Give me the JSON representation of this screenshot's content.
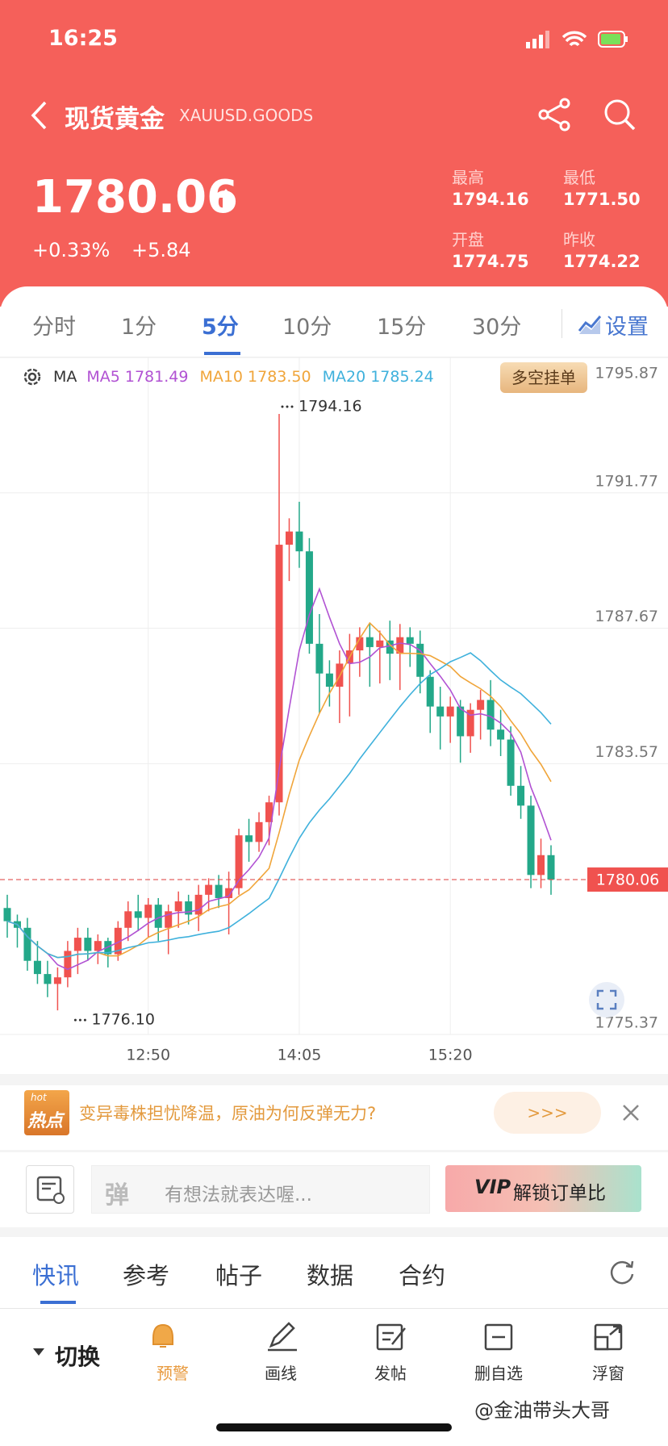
{
  "status_bar": {
    "time": "16:25"
  },
  "header": {
    "title": "现货黄金",
    "symbol": "XAUUSD.GOODS",
    "price": "1780.06",
    "change_pct": "+0.33%",
    "change": "+5.84",
    "stats": [
      {
        "label": "最高",
        "value": "1794.16"
      },
      {
        "label": "最低",
        "value": "1771.50"
      },
      {
        "label": "开盘",
        "value": "1774.75"
      },
      {
        "label": "昨收",
        "value": "1774.22"
      }
    ]
  },
  "period_tabs": {
    "items": [
      "分时",
      "1分",
      "5分",
      "10分",
      "15分",
      "30分"
    ],
    "active": 2,
    "settings": "设置"
  },
  "chart_data": {
    "type": "candlestick",
    "indicator": "MA",
    "button": "多空挂单",
    "ma": [
      {
        "name": "MA5",
        "value": 1781.49,
        "value_label": "1781.49",
        "color": "#b152d3"
      },
      {
        "name": "MA10",
        "value": 1783.5,
        "value_label": "1783.50",
        "color": "#f0a53a"
      },
      {
        "name": "MA20",
        "value": 1785.24,
        "value_label": "1785.24",
        "color": "#3fb1dc"
      }
    ],
    "up_color": "#f0524f",
    "down_color": "#23a889",
    "ylim": [
      1775.37,
      1795.87
    ],
    "yticks": [
      1775.37,
      1783.57,
      1787.67,
      1791.77,
      1795.87
    ],
    "last_price": 1780.06,
    "high_marker": 1794.16,
    "low_marker": {
      "value": 1776.1,
      "label": "1776.10"
    },
    "categories": [
      null,
      null,
      null,
      null,
      null,
      null,
      null,
      null,
      null,
      null,
      null,
      null,
      null,
      null,
      "12:50",
      null,
      null,
      null,
      null,
      null,
      null,
      null,
      null,
      null,
      null,
      null,
      null,
      null,
      null,
      "14:05",
      null,
      null,
      null,
      null,
      null,
      null,
      null,
      null,
      null,
      null,
      null,
      null,
      null,
      null,
      "15:20",
      null,
      null,
      null,
      null,
      null,
      null,
      null,
      null,
      null,
      null
    ],
    "ohlc": [
      [
        1779.2,
        1779.6,
        1778.3,
        1778.8
      ],
      [
        1778.8,
        1779.0,
        1778.0,
        1778.6
      ],
      [
        1778.6,
        1778.9,
        1777.3,
        1777.6
      ],
      [
        1777.6,
        1778.2,
        1776.9,
        1777.2
      ],
      [
        1777.2,
        1777.6,
        1776.5,
        1776.9
      ],
      [
        1776.9,
        1777.4,
        1776.1,
        1777.1
      ],
      [
        1777.1,
        1778.2,
        1776.8,
        1777.9
      ],
      [
        1777.9,
        1778.6,
        1777.2,
        1778.3
      ],
      [
        1778.3,
        1778.6,
        1777.6,
        1777.9
      ],
      [
        1777.9,
        1778.4,
        1777.5,
        1778.2
      ],
      [
        1778.2,
        1778.3,
        1777.4,
        1777.8
      ],
      [
        1777.8,
        1778.8,
        1777.6,
        1778.6
      ],
      [
        1778.6,
        1779.4,
        1778.2,
        1779.1
      ],
      [
        1779.1,
        1779.6,
        1778.5,
        1778.9
      ],
      [
        1778.9,
        1779.5,
        1778.3,
        1779.3
      ],
      [
        1779.3,
        1779.5,
        1778.2,
        1778.6
      ],
      [
        1778.6,
        1779.3,
        1777.8,
        1779.1
      ],
      [
        1779.1,
        1779.7,
        1778.6,
        1779.4
      ],
      [
        1779.4,
        1779.6,
        1778.7,
        1779.0
      ],
      [
        1779.0,
        1779.9,
        1778.5,
        1779.6
      ],
      [
        1779.6,
        1780.1,
        1779.1,
        1779.9
      ],
      [
        1779.9,
        1780.2,
        1779.2,
        1779.5
      ],
      [
        1779.5,
        1780.3,
        1778.4,
        1779.8
      ],
      [
        1779.8,
        1781.6,
        1779.6,
        1781.4
      ],
      [
        1781.4,
        1781.9,
        1780.6,
        1781.2
      ],
      [
        1781.2,
        1782.1,
        1780.9,
        1781.8
      ],
      [
        1781.8,
        1782.6,
        1781.1,
        1782.4
      ],
      [
        1782.4,
        1794.16,
        1782.0,
        1790.2
      ],
      [
        1790.2,
        1791.0,
        1789.1,
        1790.6
      ],
      [
        1790.6,
        1791.5,
        1789.5,
        1790.0
      ],
      [
        1790.0,
        1790.4,
        1786.9,
        1787.2
      ],
      [
        1787.2,
        1788.1,
        1785.1,
        1786.3
      ],
      [
        1786.3,
        1786.7,
        1785.3,
        1785.9
      ],
      [
        1785.9,
        1787.0,
        1784.8,
        1786.6
      ],
      [
        1786.6,
        1787.5,
        1785.0,
        1787.0
      ],
      [
        1787.0,
        1787.7,
        1786.2,
        1787.4
      ],
      [
        1787.4,
        1787.8,
        1785.9,
        1787.1
      ],
      [
        1787.1,
        1787.6,
        1786.0,
        1787.3
      ],
      [
        1787.3,
        1787.9,
        1786.1,
        1786.9
      ],
      [
        1786.9,
        1787.8,
        1785.8,
        1787.4
      ],
      [
        1787.4,
        1787.7,
        1786.5,
        1787.2
      ],
      [
        1787.2,
        1787.6,
        1785.7,
        1786.2
      ],
      [
        1786.2,
        1786.4,
        1784.5,
        1785.3
      ],
      [
        1785.3,
        1785.9,
        1784.0,
        1785.0
      ],
      [
        1785.0,
        1785.6,
        1784.2,
        1785.3
      ],
      [
        1785.3,
        1785.5,
        1783.6,
        1784.4
      ],
      [
        1784.4,
        1785.4,
        1783.9,
        1785.2
      ],
      [
        1785.2,
        1785.8,
        1784.3,
        1785.5
      ],
      [
        1785.5,
        1786.1,
        1784.1,
        1784.6
      ],
      [
        1784.6,
        1785.2,
        1783.8,
        1784.3
      ],
      [
        1784.3,
        1784.7,
        1782.6,
        1782.9
      ],
      [
        1782.9,
        1783.5,
        1781.9,
        1782.3
      ],
      [
        1782.3,
        1782.6,
        1779.8,
        1780.2
      ],
      [
        1780.2,
        1781.3,
        1779.8,
        1780.8
      ],
      [
        1780.8,
        1781.1,
        1779.6,
        1780.06
      ]
    ]
  },
  "news_banner": {
    "badge_top": "hot",
    "badge": "热点",
    "text": "变异毒株担忧降温，原油为何反弹无力?",
    "more": ">>>"
  },
  "comment_bar": {
    "placeholder": "有想法就表达喔...",
    "vip": "解锁订单比"
  },
  "info_tabs": {
    "items": [
      "快讯",
      "参考",
      "帖子",
      "数据",
      "合约"
    ],
    "active": 0
  },
  "bottom_bar": {
    "switch": "切换",
    "items": [
      "预警",
      "画线",
      "发帖",
      "删自选",
      "浮窗"
    ]
  },
  "watermark": "@金油带头大哥"
}
